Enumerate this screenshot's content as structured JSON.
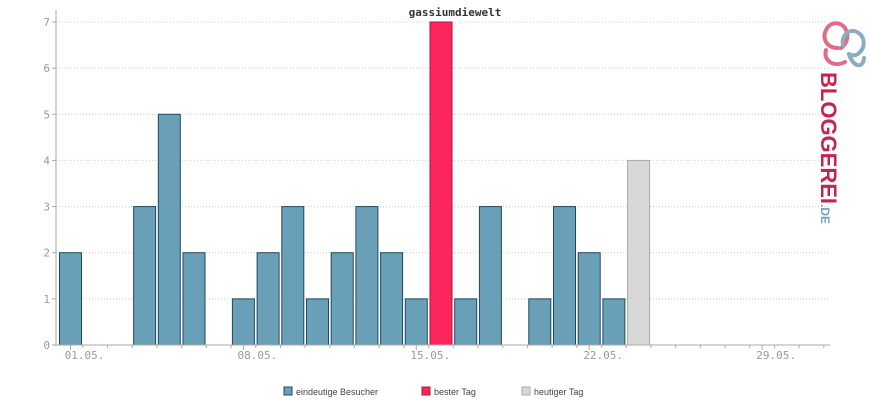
{
  "chart_data": {
    "type": "bar",
    "title": "gassiumdiewelt",
    "ylim": [
      0,
      7
    ],
    "y_ticks": [
      0,
      1,
      2,
      3,
      4,
      5,
      6,
      7
    ],
    "x_tick_labels": [
      "01.05.",
      "08.05.",
      "15.05.",
      "22.05.",
      "29.05."
    ],
    "days": [
      1,
      2,
      3,
      4,
      5,
      6,
      7,
      8,
      9,
      10,
      11,
      12,
      13,
      14,
      15,
      16,
      17,
      18,
      19,
      20,
      21,
      22,
      23,
      24,
      25,
      26,
      27,
      28,
      29,
      30,
      31
    ],
    "values": [
      2,
      0,
      0,
      3,
      5,
      2,
      0,
      1,
      2,
      3,
      1,
      2,
      3,
      2,
      1,
      7,
      1,
      3,
      0,
      1,
      3,
      2,
      1,
      4,
      0,
      0,
      0,
      0,
      0,
      0,
      0
    ],
    "bar_kinds": [
      "unique",
      "unique",
      "unique",
      "unique",
      "unique",
      "unique",
      "unique",
      "unique",
      "unique",
      "unique",
      "unique",
      "unique",
      "unique",
      "unique",
      "unique",
      "best",
      "unique",
      "unique",
      "unique",
      "unique",
      "unique",
      "unique",
      "unique",
      "today",
      "unique",
      "unique",
      "unique",
      "unique",
      "unique",
      "unique",
      "unique"
    ],
    "grid": true,
    "legend_position": "bottom",
    "legend": [
      {
        "key": "unique",
        "label": "eindeutige Besucher",
        "color": "#6a9fb8"
      },
      {
        "key": "best",
        "label": "bester Tag",
        "color": "#fc265d"
      },
      {
        "key": "today",
        "label": "heutiger Tag",
        "color": "#d8d8d8"
      }
    ]
  },
  "colors": {
    "unique_stroke": "#1f4a5e",
    "best_stroke": "#b0163f",
    "today_stroke": "#aaaaaa",
    "axis": "#aaaaaa",
    "grid": "#cccccc"
  },
  "logo": {
    "text": "BLOGGEREI",
    "suffix": ".DE",
    "text_color": "#c4254f",
    "suffix_color": "#7a9fb0"
  }
}
